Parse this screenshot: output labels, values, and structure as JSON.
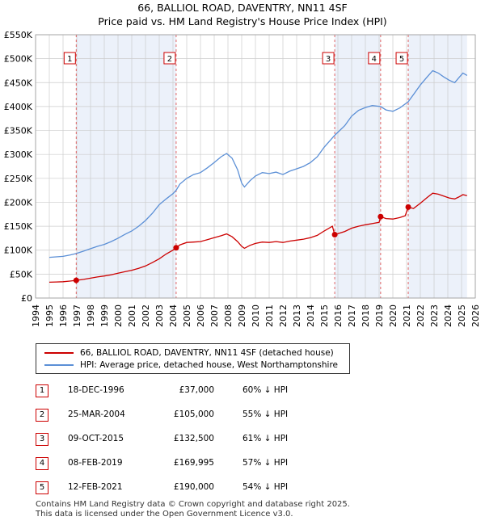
{
  "title": "66, BALLIOL ROAD, DAVENTRY, NN11 4SF",
  "subtitle": "Price paid vs. HM Land Registry's House Price Index (HPI)",
  "colors": {
    "property_line": "#cc0000",
    "hpi_line": "#5b8fd6",
    "shading": "#dce6f5",
    "sale_marker_line": "#e06666",
    "grid": "#cccccc"
  },
  "legend": {
    "property_label": "66, BALLIOL ROAD, DAVENTRY, NN11 4SF (detached house)",
    "hpi_label": "HPI: Average price, detached house, West Northamptonshire"
  },
  "sales": [
    {
      "num": "1",
      "date": "18-DEC-1996",
      "price": "£37,000",
      "hpi": "60% ↓ HPI"
    },
    {
      "num": "2",
      "date": "25-MAR-2004",
      "price": "£105,000",
      "hpi": "55% ↓ HPI"
    },
    {
      "num": "3",
      "date": "09-OCT-2015",
      "price": "£132,500",
      "hpi": "61% ↓ HPI"
    },
    {
      "num": "4",
      "date": "08-FEB-2019",
      "price": "£169,995",
      "hpi": "57% ↓ HPI"
    },
    {
      "num": "5",
      "date": "12-FEB-2021",
      "price": "£190,000",
      "hpi": "54% ↓ HPI"
    }
  ],
  "footer": {
    "line1": "Contains HM Land Registry data © Crown copyright and database right 2025.",
    "line2": "This data is licensed under the Open Government Licence v3.0."
  },
  "chart_data": {
    "type": "line",
    "x_range": [
      1994,
      2026
    ],
    "y_range": [
      0,
      550000
    ],
    "y_ticks": [
      0,
      50000,
      100000,
      150000,
      200000,
      250000,
      300000,
      350000,
      400000,
      450000,
      500000,
      550000
    ],
    "y_tick_labels": [
      "£0",
      "£50K",
      "£100K",
      "£150K",
      "£200K",
      "£250K",
      "£300K",
      "£350K",
      "£400K",
      "£450K",
      "£500K",
      "£550K"
    ],
    "x_ticks": [
      1994,
      1995,
      1996,
      1997,
      1998,
      1999,
      2000,
      2001,
      2002,
      2003,
      2004,
      2005,
      2006,
      2007,
      2008,
      2009,
      2010,
      2011,
      2012,
      2013,
      2014,
      2015,
      2016,
      2017,
      2018,
      2019,
      2020,
      2021,
      2022,
      2023,
      2024,
      2025,
      2026
    ],
    "grid": true,
    "data_start": 1995.0,
    "data_end": 2025.4,
    "shaded_periods": [
      [
        1996.96,
        2004.23
      ],
      [
        2015.77,
        2019.11
      ],
      [
        2021.12,
        2025.4
      ]
    ],
    "sale_markers": [
      {
        "label": "1",
        "x": 1996.96,
        "y": 37000
      },
      {
        "label": "2",
        "x": 2004.23,
        "y": 105000
      },
      {
        "label": "3",
        "x": 2015.77,
        "y": 132500
      },
      {
        "label": "4",
        "x": 2019.11,
        "y": 169995
      },
      {
        "label": "5",
        "x": 2021.12,
        "y": 190000
      }
    ],
    "series": [
      {
        "name": "HPI: Average price, detached house, West Northamptonshire",
        "points": [
          [
            1995.0,
            85000
          ],
          [
            1995.5,
            86000
          ],
          [
            1996.0,
            87000
          ],
          [
            1996.5,
            90000
          ],
          [
            1996.96,
            93000
          ],
          [
            1997.5,
            98000
          ],
          [
            1998.0,
            103000
          ],
          [
            1998.5,
            108000
          ],
          [
            1999.0,
            112000
          ],
          [
            1999.5,
            118000
          ],
          [
            2000.0,
            125000
          ],
          [
            2000.5,
            133000
          ],
          [
            2001.0,
            140000
          ],
          [
            2001.5,
            150000
          ],
          [
            2002.0,
            162000
          ],
          [
            2002.5,
            177000
          ],
          [
            2003.0,
            195000
          ],
          [
            2003.5,
            207000
          ],
          [
            2004.0,
            218000
          ],
          [
            2004.23,
            225000
          ],
          [
            2004.5,
            238000
          ],
          [
            2005.0,
            250000
          ],
          [
            2005.5,
            258000
          ],
          [
            2006.0,
            262000
          ],
          [
            2006.5,
            272000
          ],
          [
            2007.0,
            283000
          ],
          [
            2007.5,
            295000
          ],
          [
            2007.9,
            302000
          ],
          [
            2008.3,
            292000
          ],
          [
            2008.7,
            268000
          ],
          [
            2009.0,
            240000
          ],
          [
            2009.2,
            232000
          ],
          [
            2009.6,
            245000
          ],
          [
            2010.0,
            255000
          ],
          [
            2010.5,
            262000
          ],
          [
            2011.0,
            260000
          ],
          [
            2011.5,
            263000
          ],
          [
            2012.0,
            258000
          ],
          [
            2012.5,
            265000
          ],
          [
            2013.0,
            270000
          ],
          [
            2013.5,
            275000
          ],
          [
            2014.0,
            283000
          ],
          [
            2014.5,
            295000
          ],
          [
            2015.0,
            315000
          ],
          [
            2015.77,
            340000
          ],
          [
            2016.5,
            360000
          ],
          [
            2017.0,
            380000
          ],
          [
            2017.5,
            392000
          ],
          [
            2018.0,
            398000
          ],
          [
            2018.5,
            402000
          ],
          [
            2019.11,
            400000
          ],
          [
            2019.5,
            393000
          ],
          [
            2020.0,
            390000
          ],
          [
            2020.5,
            397000
          ],
          [
            2021.12,
            410000
          ],
          [
            2021.5,
            425000
          ],
          [
            2022.0,
            445000
          ],
          [
            2022.5,
            462000
          ],
          [
            2022.9,
            475000
          ],
          [
            2023.3,
            470000
          ],
          [
            2023.7,
            462000
          ],
          [
            2024.1,
            455000
          ],
          [
            2024.5,
            450000
          ],
          [
            2024.8,
            460000
          ],
          [
            2025.1,
            470000
          ],
          [
            2025.4,
            465000
          ]
        ]
      },
      {
        "name": "66, BALLIOL ROAD, DAVENTRY, NN11 4SF (detached house)",
        "points": [
          [
            1995.0,
            33000
          ],
          [
            1995.5,
            33500
          ],
          [
            1996.0,
            34000
          ],
          [
            1996.5,
            35500
          ],
          [
            1996.96,
            37000
          ],
          [
            1997.5,
            39000
          ],
          [
            1998.0,
            41500
          ],
          [
            1998.5,
            44000
          ],
          [
            1999.0,
            46000
          ],
          [
            1999.5,
            48500
          ],
          [
            2000.0,
            52000
          ],
          [
            2000.5,
            55000
          ],
          [
            2001.0,
            58000
          ],
          [
            2001.5,
            62000
          ],
          [
            2002.0,
            67000
          ],
          [
            2002.5,
            74000
          ],
          [
            2003.0,
            82000
          ],
          [
            2003.5,
            92000
          ],
          [
            2004.0,
            100000
          ],
          [
            2004.23,
            105000
          ],
          [
            2004.5,
            111000
          ],
          [
            2005.0,
            116000
          ],
          [
            2005.5,
            117000
          ],
          [
            2006.0,
            118000
          ],
          [
            2006.5,
            122000
          ],
          [
            2007.0,
            126000
          ],
          [
            2007.5,
            130000
          ],
          [
            2007.9,
            134000
          ],
          [
            2008.3,
            128000
          ],
          [
            2008.7,
            118000
          ],
          [
            2009.0,
            108000
          ],
          [
            2009.2,
            104000
          ],
          [
            2009.6,
            110000
          ],
          [
            2010.0,
            114000
          ],
          [
            2010.5,
            117000
          ],
          [
            2011.0,
            116000
          ],
          [
            2011.5,
            118000
          ],
          [
            2012.0,
            116000
          ],
          [
            2012.5,
            119000
          ],
          [
            2013.0,
            121000
          ],
          [
            2013.5,
            123000
          ],
          [
            2014.0,
            126000
          ],
          [
            2014.5,
            131000
          ],
          [
            2015.0,
            140000
          ],
          [
            2015.6,
            150000
          ],
          [
            2015.77,
            132500
          ],
          [
            2016.5,
            139000
          ],
          [
            2017.0,
            146000
          ],
          [
            2017.5,
            150000
          ],
          [
            2018.0,
            153000
          ],
          [
            2018.6,
            156000
          ],
          [
            2019.0,
            158000
          ],
          [
            2019.11,
            169995
          ],
          [
            2019.5,
            166000
          ],
          [
            2020.0,
            165000
          ],
          [
            2020.5,
            168000
          ],
          [
            2020.9,
            172000
          ],
          [
            2021.12,
            190000
          ],
          [
            2021.5,
            187000
          ],
          [
            2022.0,
            198000
          ],
          [
            2022.5,
            210000
          ],
          [
            2022.9,
            219000
          ],
          [
            2023.3,
            217000
          ],
          [
            2023.7,
            213000
          ],
          [
            2024.1,
            209000
          ],
          [
            2024.5,
            207000
          ],
          [
            2024.8,
            211000
          ],
          [
            2025.1,
            216000
          ],
          [
            2025.4,
            214000
          ]
        ]
      }
    ]
  }
}
